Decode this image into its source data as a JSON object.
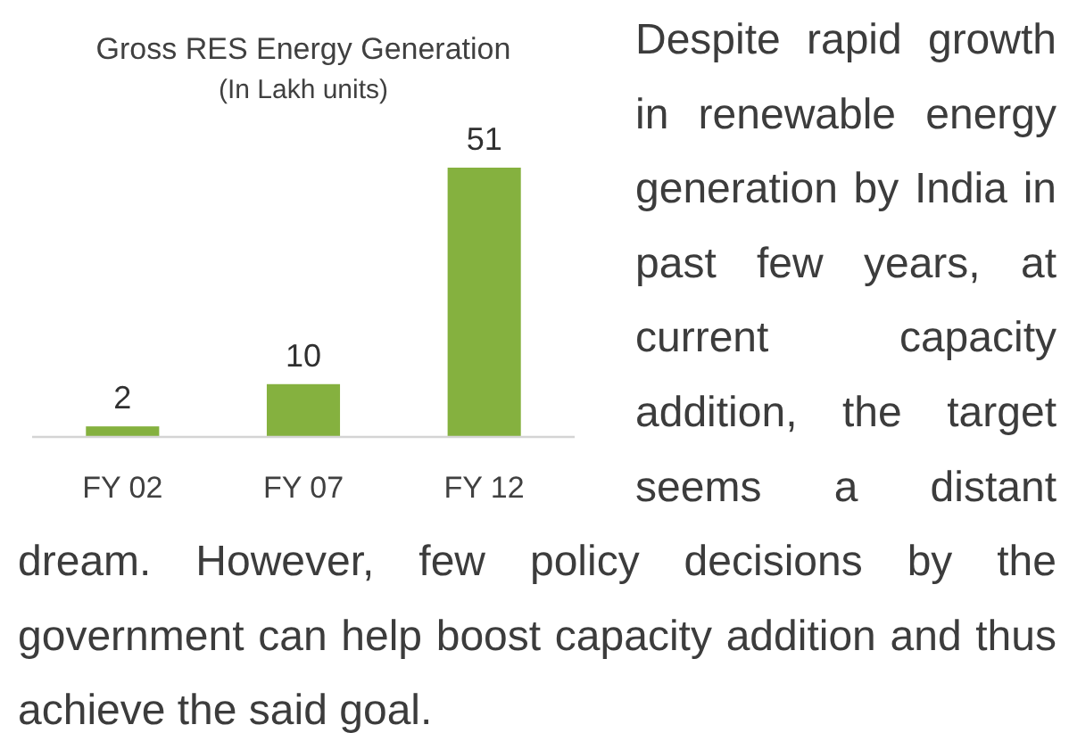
{
  "chart_data": {
    "type": "bar",
    "title": "Gross RES Energy Generation",
    "subtitle": "(In Lakh units)",
    "categories": [
      "FY 02",
      "FY 07",
      "FY 12"
    ],
    "values": [
      2,
      10,
      51
    ],
    "color": "#85b13f",
    "data_labels": true,
    "annotations": [
      "Despite rapid growth in renewable energy generation by India in past few years, at current capacity addition, the target seems a distant",
      "dream. However, few policy decisions by the government can help boost capacity addition and thus achieve the said goal."
    ]
  }
}
